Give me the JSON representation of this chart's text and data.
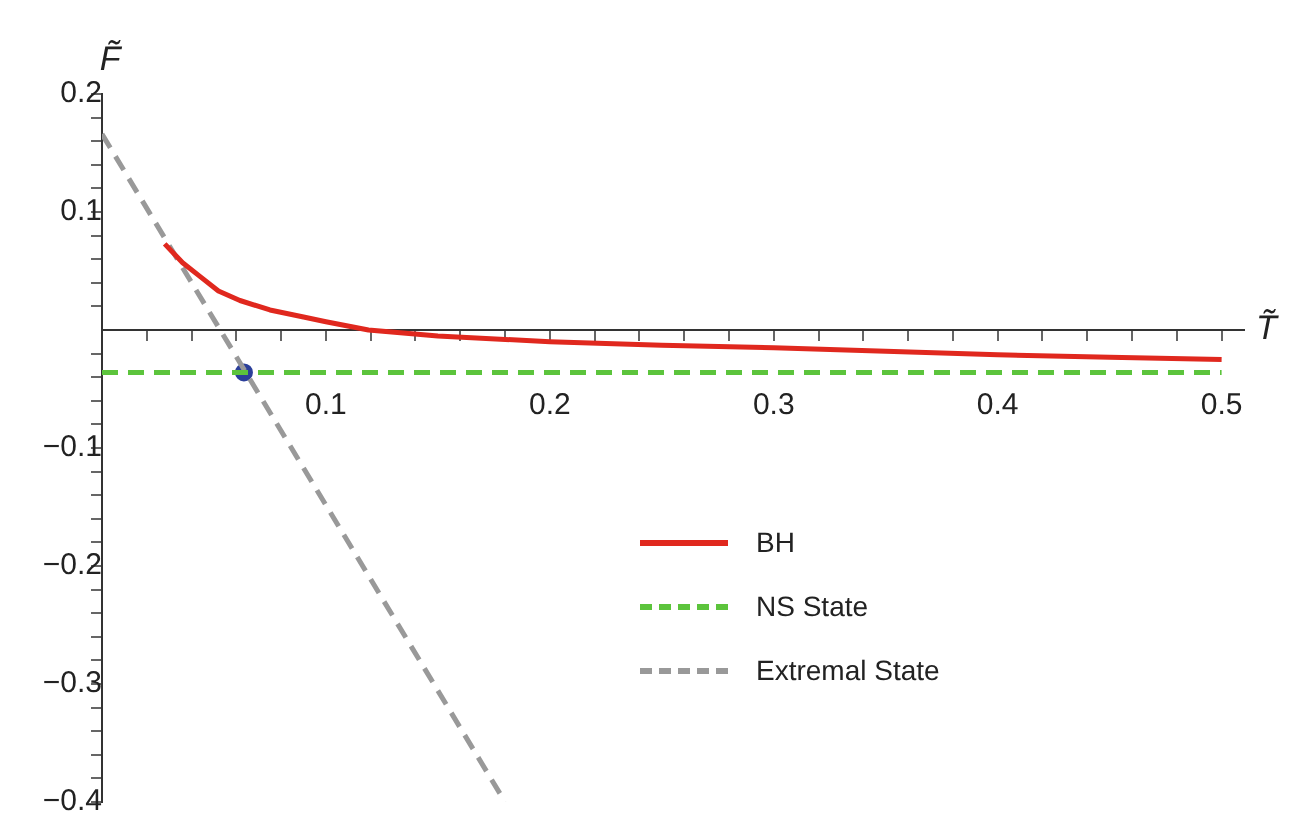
{
  "chart_data": {
    "type": "line",
    "xlabel": "T̃",
    "ylabel": "F̃",
    "xlim": [
      0,
      0.51
    ],
    "ylim": [
      -0.4,
      0.2
    ],
    "xticks": [
      {
        "value": 0.02,
        "label": null
      },
      {
        "value": 0.04,
        "label": null
      },
      {
        "value": 0.06,
        "label": null
      },
      {
        "value": 0.08,
        "label": null
      },
      0.1,
      {
        "value": 0.12,
        "label": null
      },
      {
        "value": 0.14,
        "label": null
      },
      {
        "value": 0.16,
        "label": null
      },
      {
        "value": 0.18,
        "label": null
      },
      0.2,
      {
        "value": 0.22,
        "label": null
      },
      {
        "value": 0.24,
        "label": null
      },
      {
        "value": 0.26,
        "label": null
      },
      {
        "value": 0.28,
        "label": null
      },
      0.3,
      {
        "value": 0.32,
        "label": null
      },
      {
        "value": 0.34,
        "label": null
      },
      {
        "value": 0.36,
        "label": null
      },
      {
        "value": 0.38,
        "label": null
      },
      0.4,
      {
        "value": 0.42,
        "label": null
      },
      {
        "value": 0.44,
        "label": null
      },
      {
        "value": 0.46,
        "label": null
      },
      {
        "value": 0.48,
        "label": null
      },
      0.5
    ],
    "yticks": [
      {
        "value": -0.4,
        "label": "−0.4"
      },
      {
        "value": -0.38,
        "label": null
      },
      {
        "value": -0.36,
        "label": null
      },
      {
        "value": -0.34,
        "label": null
      },
      {
        "value": -0.32,
        "label": null
      },
      {
        "value": -0.3,
        "label": "−0.3"
      },
      {
        "value": -0.28,
        "label": null
      },
      {
        "value": -0.26,
        "label": null
      },
      {
        "value": -0.24,
        "label": null
      },
      {
        "value": -0.22,
        "label": null
      },
      {
        "value": -0.2,
        "label": "−0.2"
      },
      {
        "value": -0.18,
        "label": null
      },
      {
        "value": -0.16,
        "label": null
      },
      {
        "value": -0.14,
        "label": null
      },
      {
        "value": -0.12,
        "label": null
      },
      {
        "value": -0.1,
        "label": "−0.1"
      },
      {
        "value": -0.08,
        "label": null
      },
      {
        "value": -0.06,
        "label": null
      },
      {
        "value": -0.04,
        "label": null
      },
      {
        "value": -0.02,
        "label": null
      },
      {
        "value": 0.02,
        "label": null
      },
      {
        "value": 0.04,
        "label": null
      },
      {
        "value": 0.06,
        "label": null
      },
      {
        "value": 0.08,
        "label": null
      },
      0.1,
      {
        "value": 0.12,
        "label": null
      },
      {
        "value": 0.14,
        "label": null
      },
      {
        "value": 0.16,
        "label": null
      },
      {
        "value": 0.18,
        "label": null
      },
      0.2
    ],
    "grid": false,
    "legend": "right",
    "marker": "none",
    "series": [
      {
        "name": "BH",
        "color": "#e0281e",
        "line_style": "solid",
        "x": [
          0.028,
          0.036,
          0.044,
          0.052,
          0.0616,
          0.075,
          0.09,
          0.1,
          0.119,
          0.15,
          0.2,
          0.25,
          0.3,
          0.35,
          0.4,
          0.45,
          0.5
        ],
        "values": [
          0.073,
          0.057,
          0.045,
          0.033,
          0.025,
          0.017,
          0.011,
          0.007,
          0.0,
          -0.005,
          -0.01,
          -0.013,
          -0.015,
          -0.018,
          -0.021,
          -0.023,
          -0.025
        ]
      },
      {
        "name": "NS State",
        "color": "#5cc43c",
        "line_style": "dashed",
        "x": [
          0,
          0.5
        ],
        "values": [
          -0.036,
          -0.036
        ]
      },
      {
        "name": "Extremal State",
        "color": "#999999",
        "line_style": "dashed",
        "x": [
          0,
          0.18
        ],
        "values": [
          0.166,
          -0.4
        ]
      },
      {
        "type": "scatter",
        "color": "#2b3f9a",
        "marker": "circle",
        "x": [
          0.0634
        ],
        "values": [
          -0.036
        ]
      }
    ]
  }
}
